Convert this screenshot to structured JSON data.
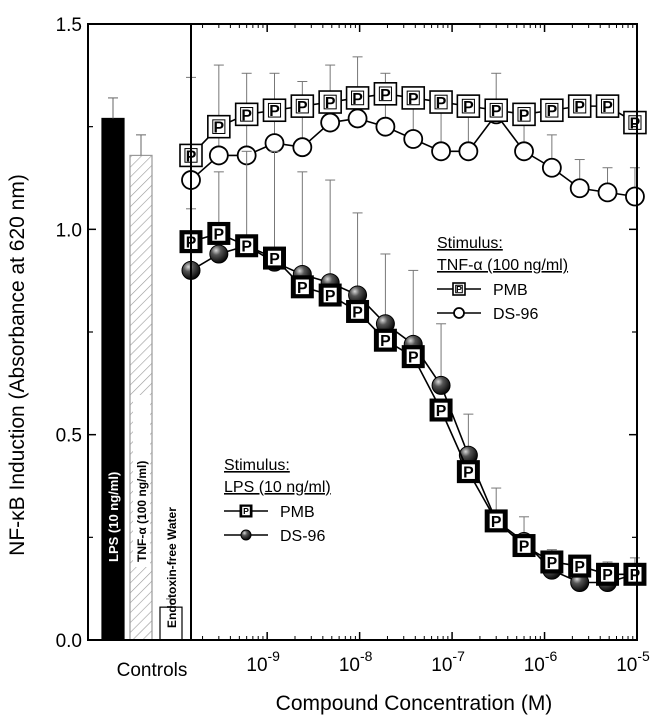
{
  "chart_data": {
    "type": "line",
    "ylabel": "NF-κB Induction (Absorbance at 620 nm)",
    "xlabel": "Compound Concentration (M)",
    "ylim": [
      0.0,
      1.5
    ],
    "yticks": [
      "0.0",
      "0.5",
      "1.0",
      "1.5"
    ],
    "xscale": "log",
    "xlim": [
      1.5e-10,
      1e-05
    ],
    "xticks": [
      {
        "value": 1e-09,
        "base": "10",
        "exp": "-9"
      },
      {
        "value": 1e-08,
        "base": "10",
        "exp": "-8"
      },
      {
        "value": 1e-07,
        "base": "10",
        "exp": "-7"
      },
      {
        "value": 1e-06,
        "base": "10",
        "exp": "-6"
      },
      {
        "value": 1e-05,
        "base": "10",
        "exp": "-5"
      }
    ],
    "controls": {
      "axis_label": "Controls",
      "bars": [
        {
          "label": "LPS (10 ng/ml)",
          "value": 1.27,
          "error": 0.05,
          "color": "#000000"
        },
        {
          "label": "TNF-α (100 ng/ml)",
          "value": 1.18,
          "error": 0.05,
          "color": "#ffffff",
          "hatched": true
        },
        {
          "label": "Endotoxin-free Water",
          "value": 0.08,
          "error": 0.02,
          "color": "#ffffff"
        }
      ]
    },
    "x": [
      1.5e-10,
      3e-10,
      6e-10,
      1.2e-09,
      2.4e-09,
      4.8e-09,
      9.5e-09,
      1.9e-08,
      3.8e-08,
      7.6e-08,
      1.5e-07,
      3e-07,
      6e-07,
      1.2e-06,
      2.4e-06,
      4.8e-06,
      9.5e-06
    ],
    "series": [
      {
        "name": "PMB",
        "marker": "P",
        "group": "TNF",
        "filled": false,
        "values": [
          1.18,
          1.25,
          1.28,
          1.29,
          1.3,
          1.31,
          1.32,
          1.33,
          1.32,
          1.31,
          1.3,
          1.29,
          1.28,
          1.29,
          1.3,
          1.3,
          1.26
        ],
        "errors": [
          0,
          0,
          0,
          0,
          0,
          0,
          0,
          0,
          0,
          0,
          0,
          0,
          0,
          0,
          0,
          0,
          0
        ]
      },
      {
        "name": "DS-96",
        "marker": "circle",
        "group": "TNF",
        "filled": false,
        "values": [
          1.12,
          1.18,
          1.18,
          1.21,
          1.2,
          1.26,
          1.27,
          1.25,
          1.22,
          1.19,
          1.19,
          1.28,
          1.19,
          1.15,
          1.1,
          1.09,
          1.08
        ],
        "errors": [
          0.25,
          0.22,
          0.2,
          0.17,
          0.16,
          0.14,
          0.15,
          0.13,
          0.1,
          0.12,
          0.12,
          0.1,
          0.1,
          0.08,
          0.07,
          0.06,
          0.07
        ]
      },
      {
        "name": "PMB",
        "marker": "P",
        "group": "LPS",
        "filled": true,
        "values": [
          0.97,
          0.99,
          0.96,
          0.93,
          0.86,
          0.84,
          0.8,
          0.73,
          0.69,
          0.56,
          0.41,
          0.29,
          0.23,
          0.19,
          0.18,
          0.16,
          0.16
        ],
        "errors": [
          0,
          0,
          0,
          0,
          0,
          0,
          0,
          0,
          0,
          0,
          0,
          0,
          0,
          0,
          0,
          0,
          0
        ]
      },
      {
        "name": "DS-96",
        "marker": "circle",
        "group": "LPS",
        "filled": true,
        "values": [
          0.9,
          0.94,
          0.96,
          0.92,
          0.89,
          0.87,
          0.84,
          0.77,
          0.72,
          0.62,
          0.45,
          0.29,
          0.24,
          0.17,
          0.14,
          0.14,
          0.16
        ],
        "errors": [
          0.15,
          0.2,
          0.23,
          0.27,
          0.25,
          0.25,
          0.2,
          0.17,
          0.18,
          0.15,
          0.1,
          0.08,
          0.06,
          0.05,
          0.05,
          0.05,
          0.04
        ]
      }
    ],
    "legends": [
      {
        "title_line1": "Stimulus:",
        "title_line2": "TNF-α (100 ng/ml)",
        "items": [
          {
            "label": "PMB",
            "marker": "P",
            "filled": false
          },
          {
            "label": "DS-96",
            "marker": "circle",
            "filled": false
          }
        ]
      },
      {
        "title_line1": "Stimulus:",
        "title_line2": "LPS (10 ng/ml)",
        "items": [
          {
            "label": "PMB",
            "marker": "P",
            "filled": true
          },
          {
            "label": "DS-96",
            "marker": "circle",
            "filled": true
          }
        ]
      }
    ]
  }
}
